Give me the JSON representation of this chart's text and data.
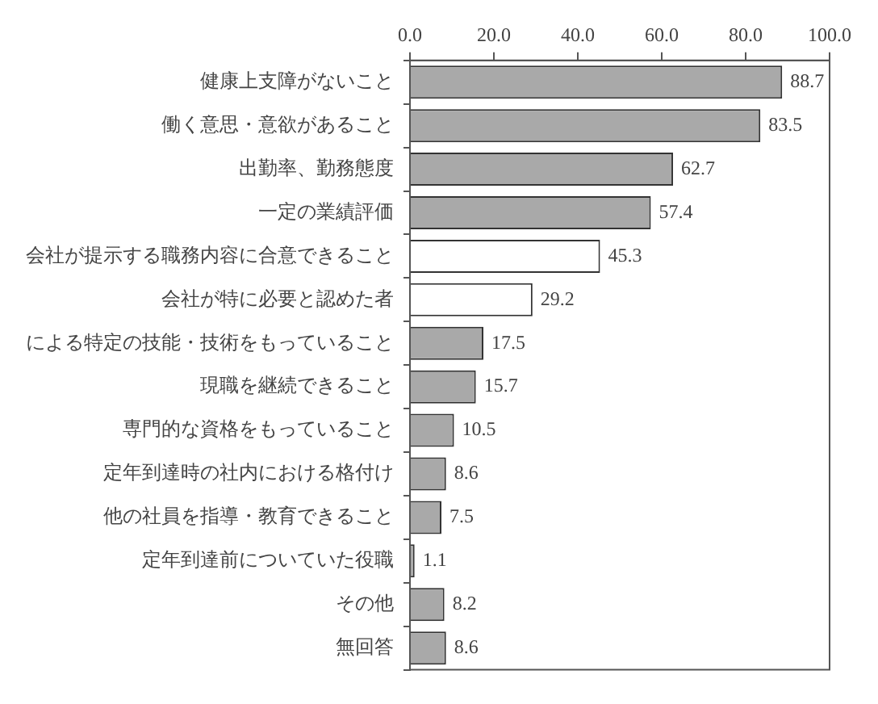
{
  "chart_data": {
    "type": "bar",
    "orientation": "horizontal",
    "categories": [
      "健康上支障がないこと",
      "働く意思・意欲があること",
      "出勤率、勤務態度",
      "一定の業績評価",
      "会社が提示する職務内容に合意できること",
      "会社が特に必要と認めた者",
      "による特定の技能・技術をもっていること",
      "現職を継続できること",
      "専門的な資格をもっていること",
      "定年到達時の社内における格付け",
      "他の社員を指導・教育できること",
      "定年到達前についていた役職",
      "その他",
      "無回答"
    ],
    "values": [
      88.7,
      83.5,
      62.7,
      57.4,
      45.3,
      29.2,
      17.5,
      15.7,
      10.5,
      8.6,
      7.5,
      1.1,
      8.2,
      8.6
    ],
    "colors": [
      "#a9a9a9",
      "#a9a9a9",
      "#a9a9a9",
      "#a9a9a9",
      "#ffffff",
      "#ffffff",
      "#a9a9a9",
      "#a9a9a9",
      "#a9a9a9",
      "#a9a9a9",
      "#a9a9a9",
      "#a9a9a9",
      "#a9a9a9",
      "#a9a9a9"
    ],
    "xlim": [
      0,
      100
    ],
    "xticks": [
      {
        "value": 0,
        "label": "0.0"
      },
      {
        "value": 20,
        "label": "20.0"
      },
      {
        "value": 40,
        "label": "40.0"
      },
      {
        "value": 60,
        "label": "60.0"
      },
      {
        "value": 80,
        "label": "80.0"
      },
      {
        "value": 100,
        "label": "100.0"
      }
    ],
    "data_labels": true
  }
}
